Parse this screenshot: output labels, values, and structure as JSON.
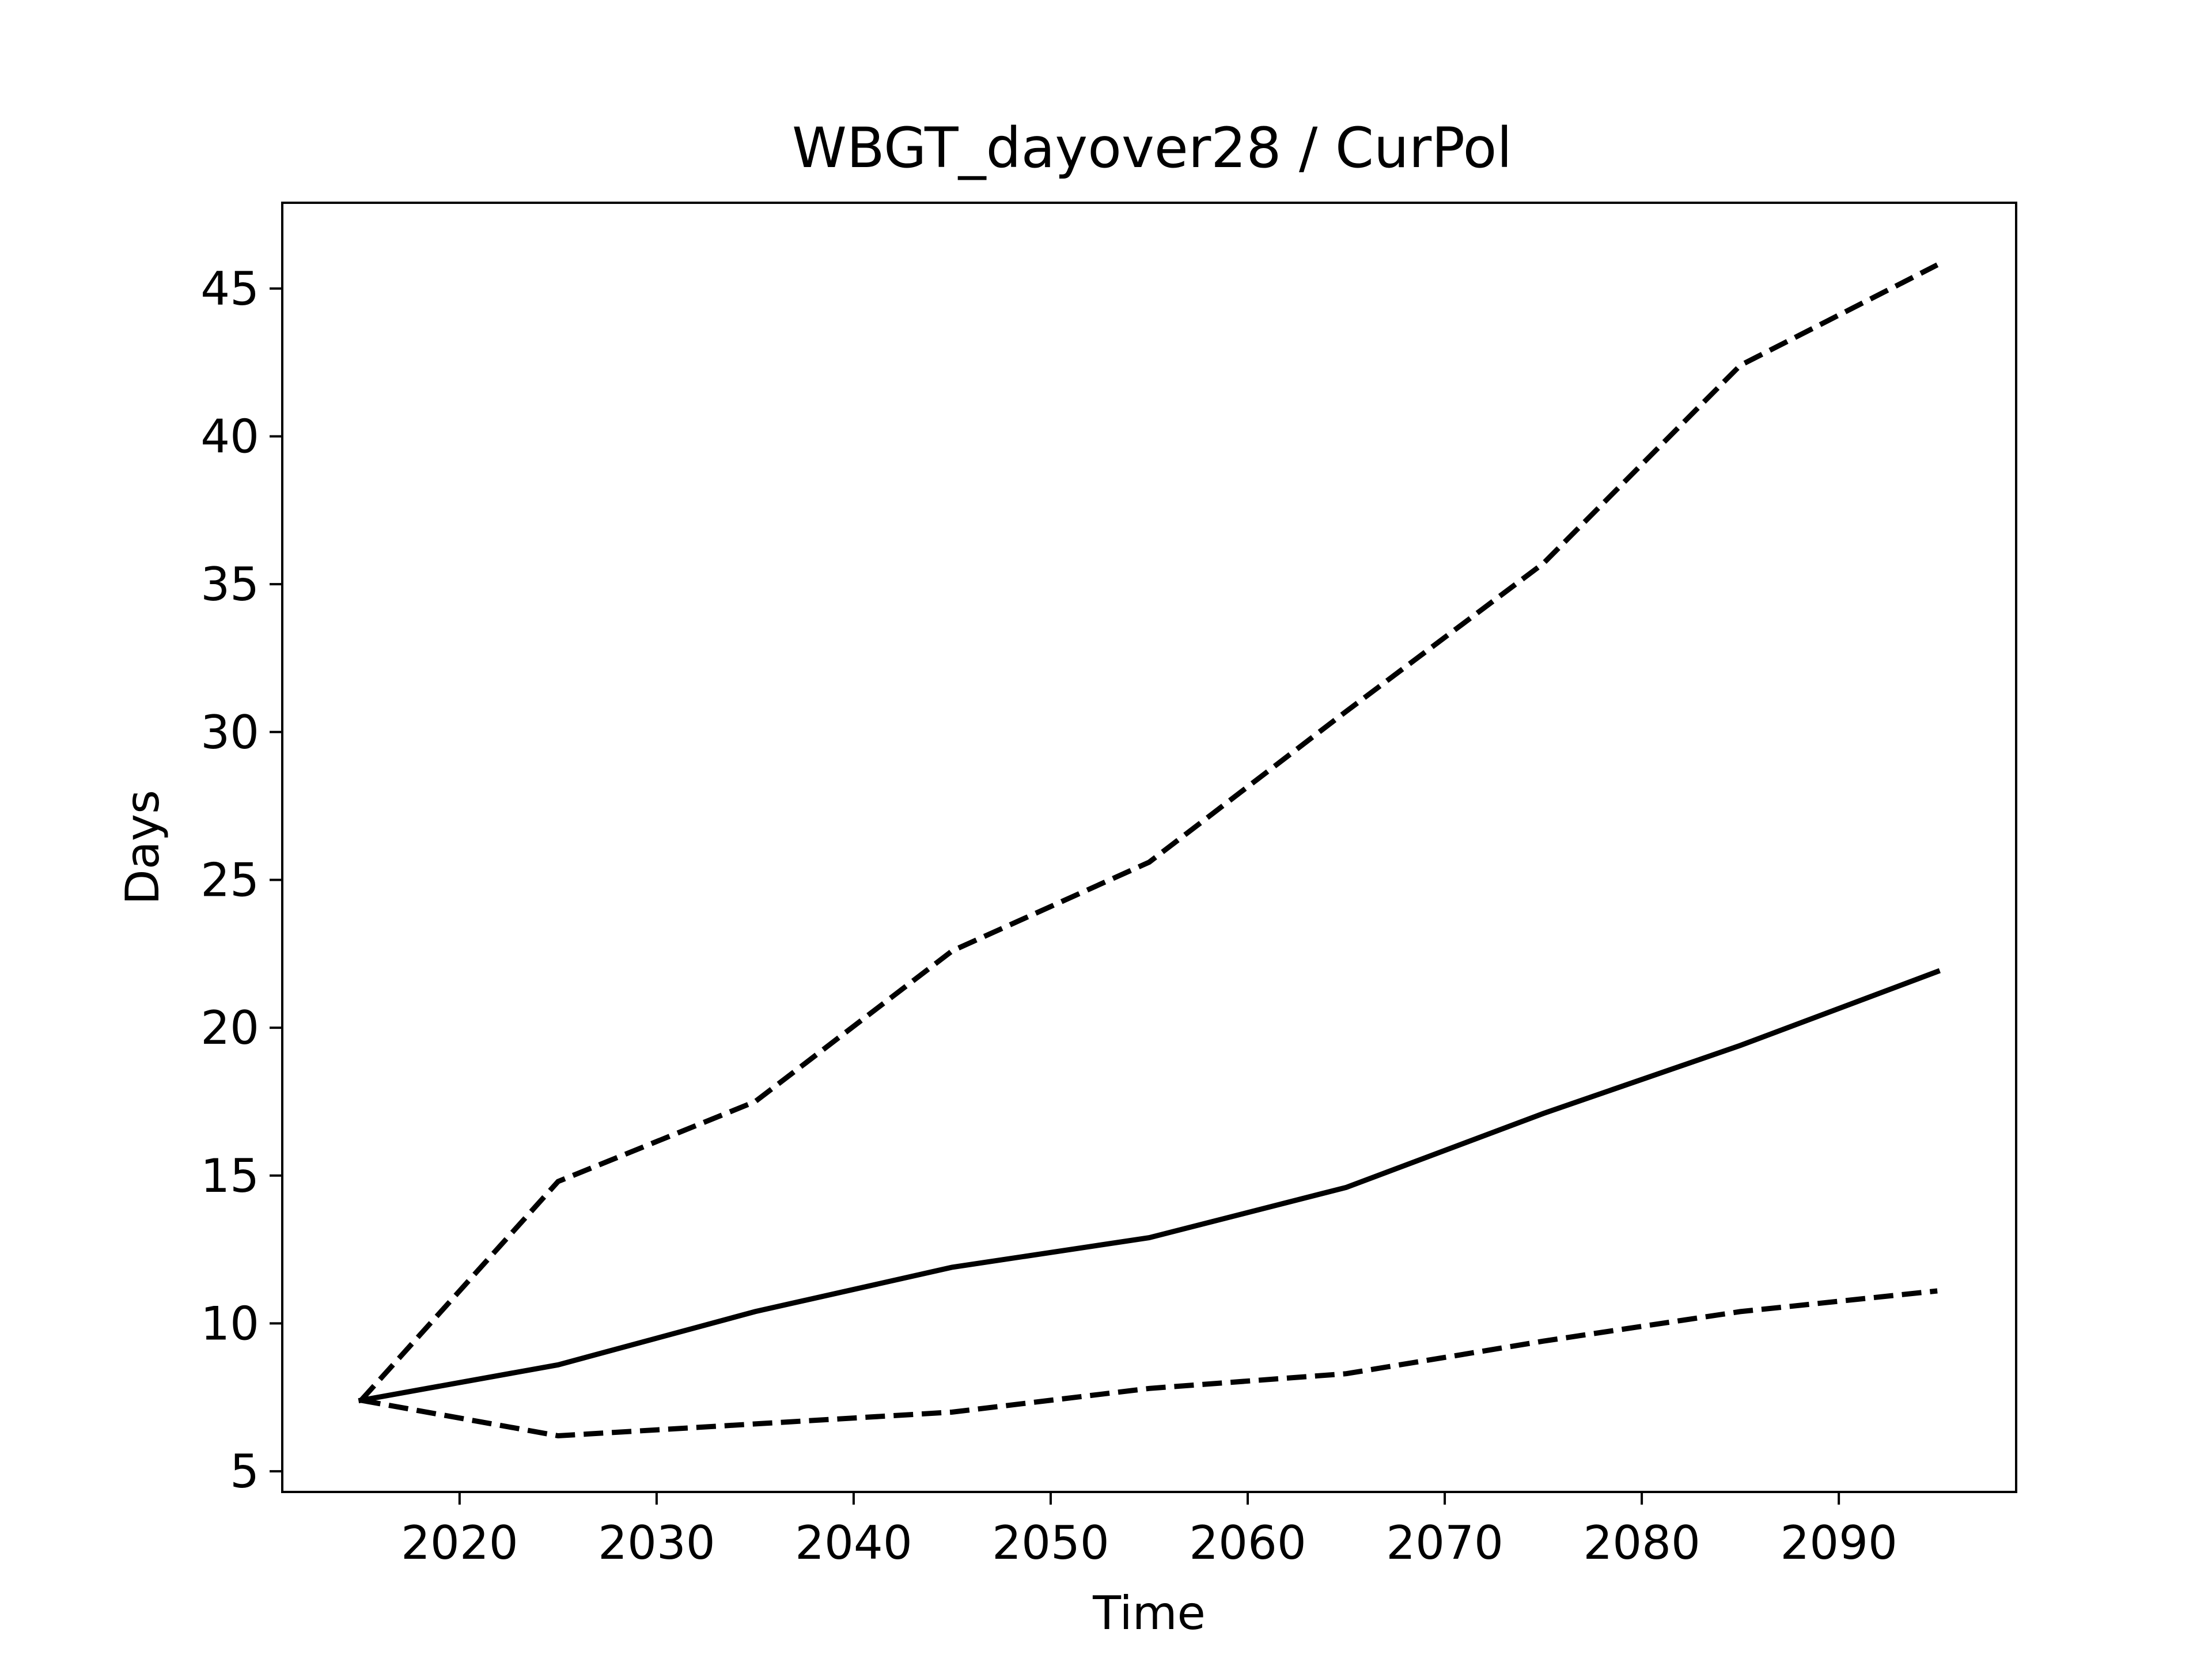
{
  "chart_data": {
    "type": "line",
    "title": "WBGT_dayover28 / CurPol",
    "xlabel": "Time",
    "ylabel": "Days",
    "x": [
      2015,
      2025,
      2035,
      2045,
      2055,
      2065,
      2075,
      2085,
      2095
    ],
    "xlim": [
      2011,
      2099
    ],
    "ylim": [
      4.3,
      47.9
    ],
    "xticks": [
      2020,
      2030,
      2040,
      2050,
      2060,
      2070,
      2080,
      2090
    ],
    "yticks": [
      5,
      10,
      15,
      20,
      25,
      30,
      35,
      40,
      45
    ],
    "grid": false,
    "series": [
      {
        "style": "dashed",
        "values": [
          7.4,
          14.8,
          17.5,
          22.6,
          25.6,
          30.7,
          35.7,
          42.4,
          45.8
        ]
      },
      {
        "style": "solid",
        "values": [
          7.4,
          8.6,
          10.4,
          11.9,
          12.9,
          14.6,
          17.1,
          19.4,
          21.9
        ]
      },
      {
        "style": "dashed",
        "values": [
          7.4,
          6.2,
          6.6,
          7.0,
          7.8,
          8.3,
          9.4,
          10.4,
          11.1
        ]
      }
    ],
    "line_color": "#000000"
  }
}
